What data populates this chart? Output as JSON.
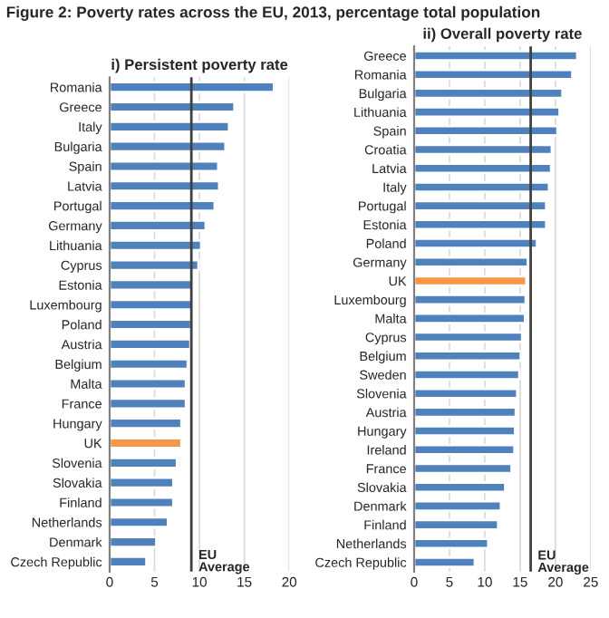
{
  "chart_data": [
    {
      "type": "bar",
      "orientation": "horizontal",
      "title": "i) Persistent poverty rate",
      "categories": [
        "Romania",
        "Greece",
        "Italy",
        "Bulgaria",
        "Spain",
        "Latvia",
        "Portugal",
        "Germany",
        "Lithuania",
        "Cyprus",
        "Estonia",
        "Luxembourg",
        "Poland",
        "Austria",
        "Belgium",
        "Malta",
        "France",
        "Hungary",
        "UK",
        "Slovenia",
        "Slovakia",
        "Finland",
        "Netherlands",
        "Denmark",
        "Czech Republic"
      ],
      "values": [
        18.3,
        13.9,
        13.3,
        12.9,
        12.1,
        12.2,
        11.7,
        10.7,
        10.2,
        9.9,
        9.3,
        9.3,
        9.1,
        9.0,
        8.7,
        8.5,
        8.5,
        8.0,
        8.0,
        7.5,
        7.1,
        7.1,
        6.5,
        5.2,
        4.1
      ],
      "colors": [
        "#4f81bd",
        "#4f81bd",
        "#4f81bd",
        "#4f81bd",
        "#4f81bd",
        "#4f81bd",
        "#4f81bd",
        "#4f81bd",
        "#4f81bd",
        "#4f81bd",
        "#4f81bd",
        "#4f81bd",
        "#4f81bd",
        "#4f81bd",
        "#4f81bd",
        "#4f81bd",
        "#4f81bd",
        "#4f81bd",
        "#f79646",
        "#4f81bd",
        "#4f81bd",
        "#4f81bd",
        "#4f81bd",
        "#4f81bd",
        "#4f81bd"
      ],
      "xlim": [
        0,
        20
      ],
      "xticks": [
        0,
        5,
        10,
        15,
        20
      ],
      "grid": "x",
      "ref_lines": [
        {
          "axis": "x",
          "value": 9.1,
          "label": "EU\nAverage",
          "color": "#404040"
        }
      ]
    },
    {
      "type": "bar",
      "orientation": "horizontal",
      "title": "ii) Overall poverty rate",
      "categories": [
        "Greece",
        "Romania",
        "Bulgaria",
        "Lithuania",
        "Spain",
        "Croatia",
        "Latvia",
        "Italy",
        "Portugal",
        "Estonia",
        "Poland",
        "Germany",
        "UK",
        "Luxembourg",
        "Malta",
        "Cyprus",
        "Belgium",
        "Sweden",
        "Slovenia",
        "Austria",
        "Hungary",
        "Ireland",
        "France",
        "Slovakia",
        "Denmark",
        "Finland",
        "Netherlands",
        "Czech Republic"
      ],
      "values": [
        23.1,
        22.4,
        21.0,
        20.6,
        20.3,
        19.5,
        19.4,
        19.1,
        18.7,
        18.7,
        17.4,
        16.1,
        15.9,
        15.8,
        15.7,
        15.3,
        15.1,
        14.9,
        14.6,
        14.4,
        14.3,
        14.2,
        13.8,
        12.9,
        12.3,
        11.9,
        10.5,
        8.6
      ],
      "colors": [
        "#4f81bd",
        "#4f81bd",
        "#4f81bd",
        "#4f81bd",
        "#4f81bd",
        "#4f81bd",
        "#4f81bd",
        "#4f81bd",
        "#4f81bd",
        "#4f81bd",
        "#4f81bd",
        "#4f81bd",
        "#f79646",
        "#4f81bd",
        "#4f81bd",
        "#4f81bd",
        "#4f81bd",
        "#4f81bd",
        "#4f81bd",
        "#4f81bd",
        "#4f81bd",
        "#4f81bd",
        "#4f81bd",
        "#4f81bd",
        "#4f81bd",
        "#4f81bd",
        "#4f81bd",
        "#4f81bd"
      ],
      "xlim": [
        0,
        25
      ],
      "xticks": [
        0,
        5,
        10,
        15,
        20,
        25
      ],
      "grid": "x",
      "ref_lines": [
        {
          "axis": "x",
          "value": 16.5,
          "label": "EU\nAverage",
          "color": "#404040"
        }
      ]
    },
    {
      "type": "other",
      "title": "Figure 2: Poverty rates across the EU, 2013, percentage total population"
    }
  ]
}
